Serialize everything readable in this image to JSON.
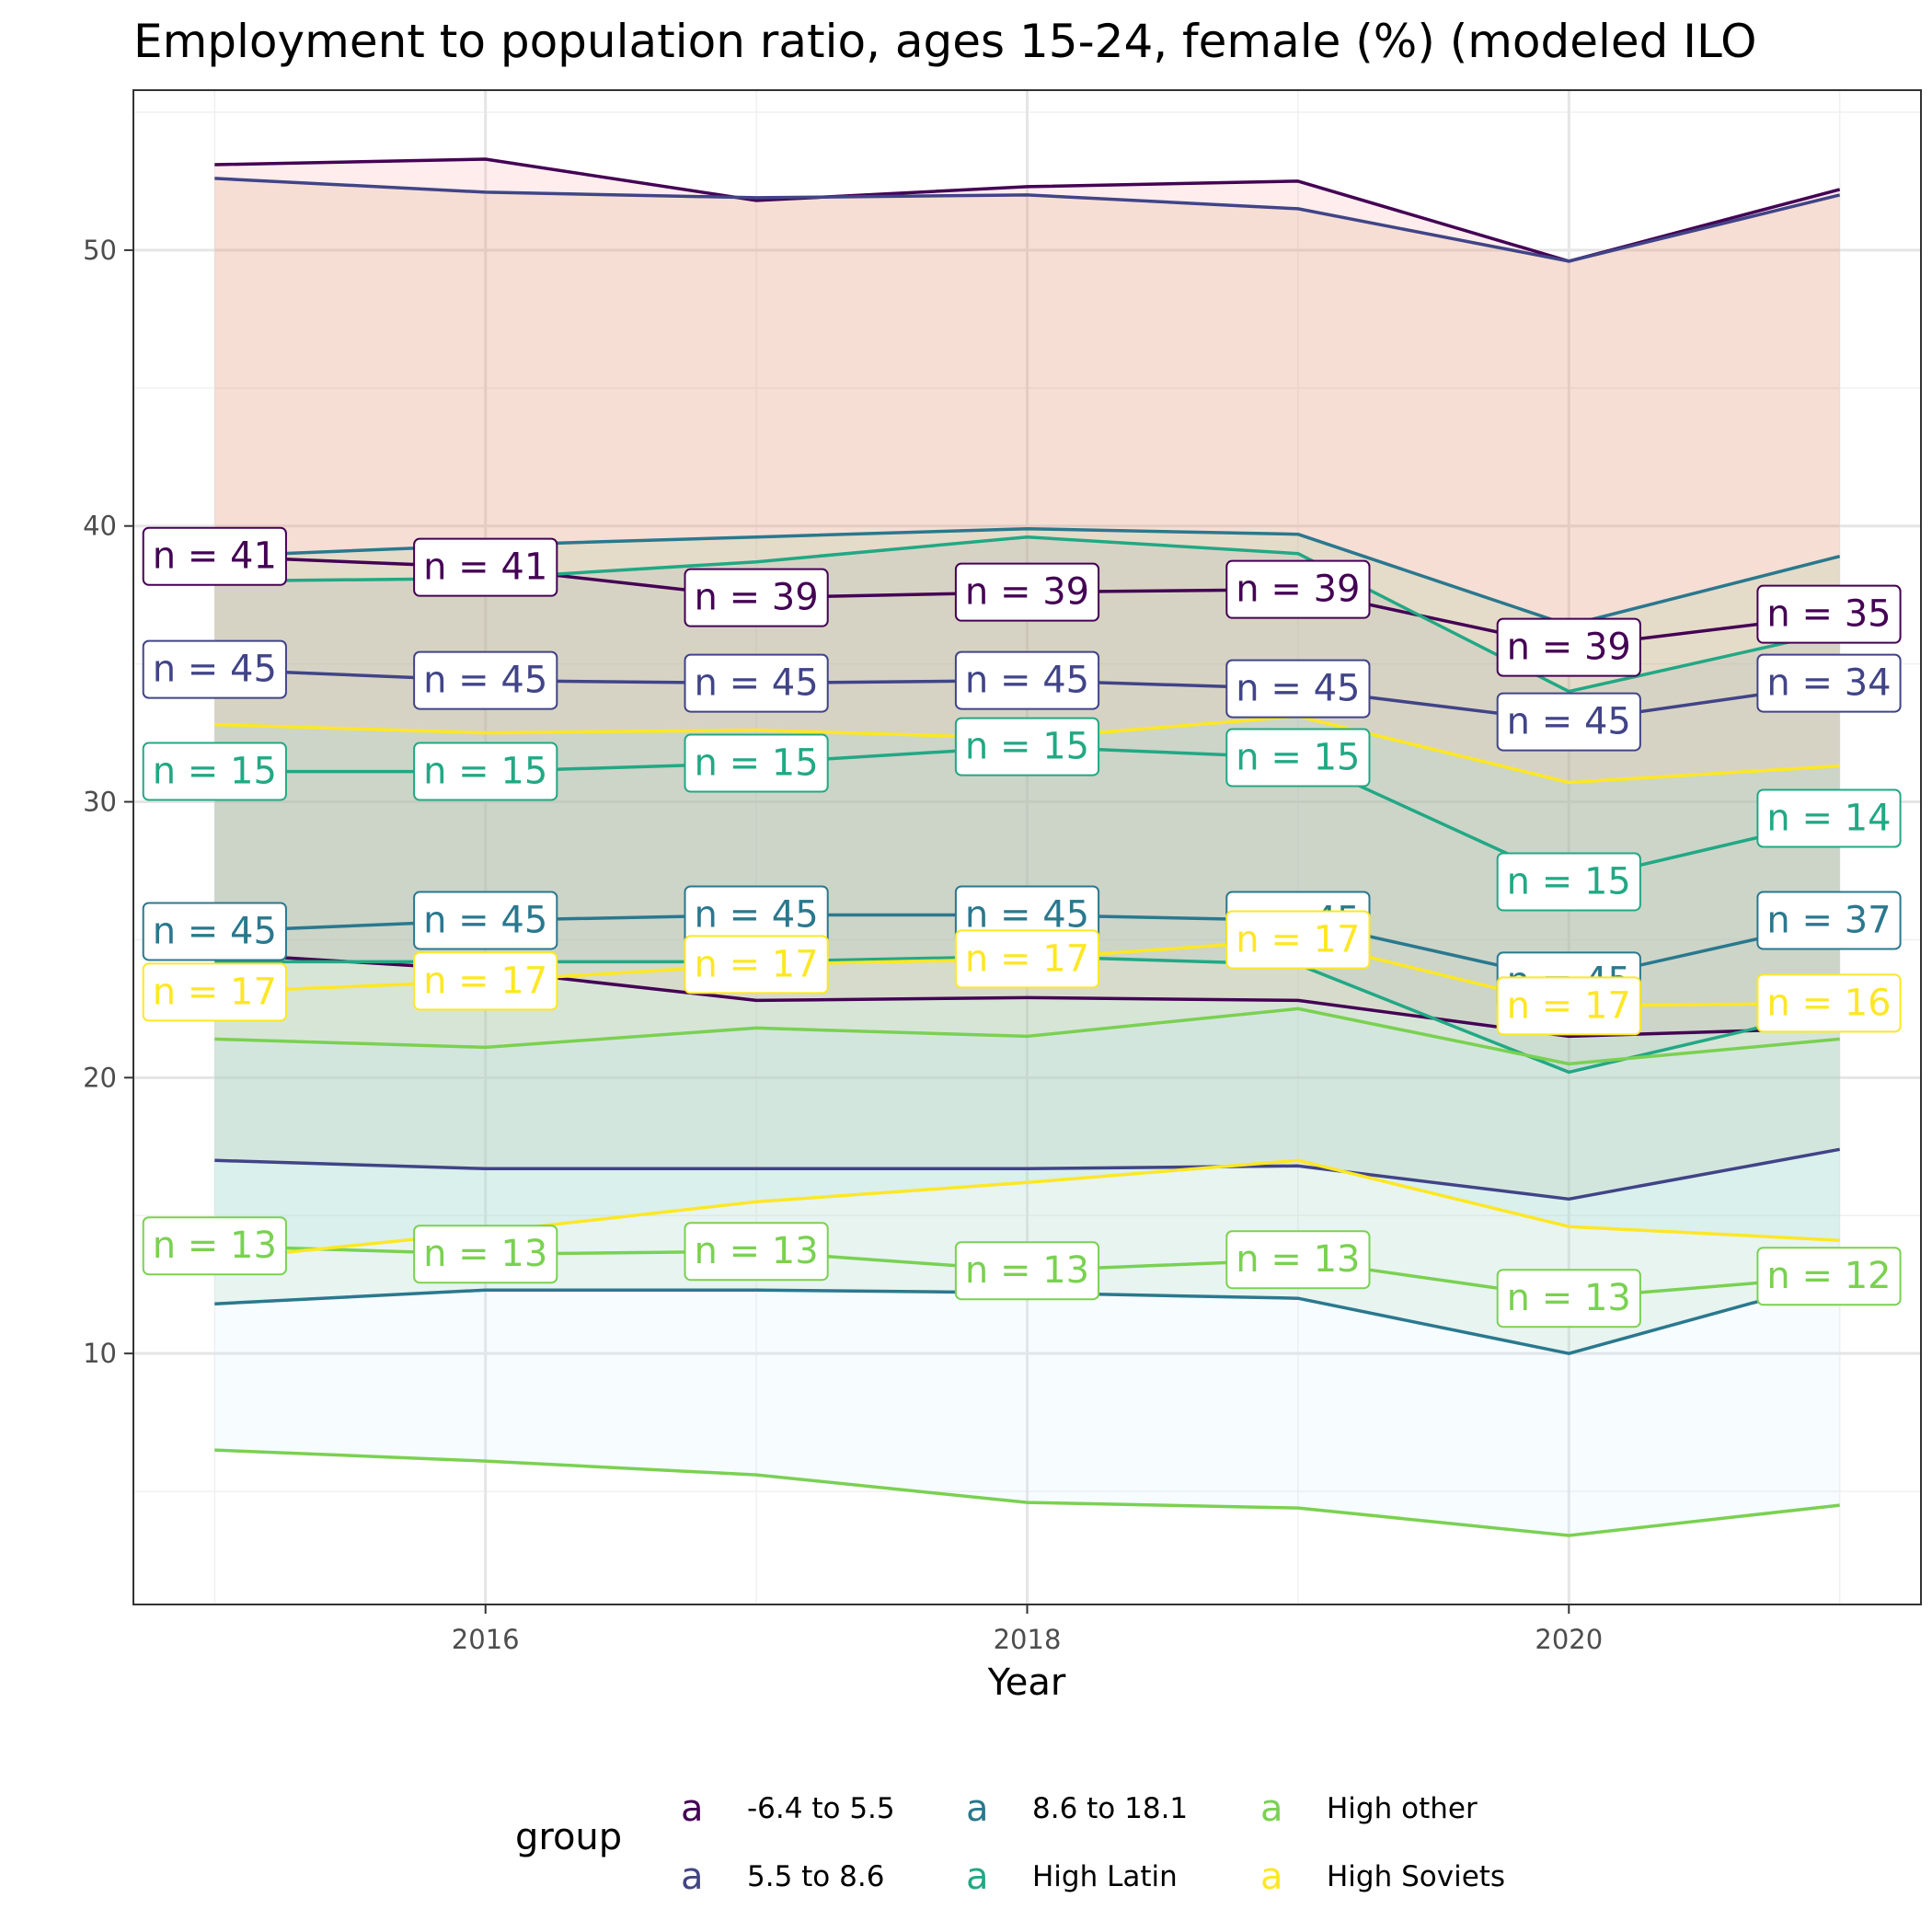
{
  "chart_data": {
    "type": "line",
    "title": "Employment to population ratio, ages 15-24, female (%) (modeled ILO",
    "xlabel": "Year",
    "ylabel": "",
    "x": [
      2015,
      2016,
      2017,
      2018,
      2019,
      2020,
      2021
    ],
    "xlim": [
      2014.7,
      2021.3
    ],
    "ylim": [
      0.9,
      55.8
    ],
    "xticks": [
      "2016",
      "2018",
      "2020"
    ],
    "yticks": [
      "10",
      "20",
      "30",
      "40",
      "50"
    ],
    "grid": true,
    "legend_position": "bottom",
    "legend_title": "group",
    "legend_key_glyph": "a",
    "label_prefix": "n = ",
    "series": [
      {
        "name": "-6.4 to 5.5",
        "color": "#440154",
        "fill": "#ff9999",
        "upper": [
          53.1,
          53.3,
          51.8,
          52.3,
          52.5,
          49.6,
          52.2
        ],
        "lower": [
          24.5,
          23.9,
          22.8,
          22.9,
          22.8,
          21.5,
          21.8
        ],
        "mid": [
          38.9,
          38.5,
          37.4,
          37.6,
          37.7,
          35.6,
          36.8
        ],
        "n": [
          "41",
          "41",
          "39",
          "39",
          "39",
          "39",
          "35"
        ]
      },
      {
        "name": "5.5 to 8.6",
        "color": "#414487",
        "fill": "#cc9966",
        "upper": [
          52.6,
          52.1,
          51.9,
          52.0,
          51.5,
          49.6,
          52.0
        ],
        "lower": [
          17.0,
          16.7,
          16.7,
          16.7,
          16.8,
          15.6,
          17.4
        ],
        "mid": [
          34.8,
          34.4,
          34.3,
          34.4,
          34.1,
          32.9,
          34.3
        ],
        "n": [
          "45",
          "45",
          "45",
          "45",
          "45",
          "45",
          "34"
        ]
      },
      {
        "name": "8.6 to 18.1",
        "color": "#2a788e",
        "fill": "#99cc99",
        "upper": [
          38.9,
          39.3,
          39.6,
          39.9,
          39.7,
          36.4,
          38.9
        ],
        "lower": [
          11.8,
          12.3,
          12.3,
          12.2,
          12.0,
          10.0,
          12.7
        ],
        "mid": [
          25.3,
          25.7,
          25.9,
          25.9,
          25.7,
          23.5,
          25.7
        ],
        "n": [
          "45",
          "45",
          "45",
          "45",
          "45",
          "45",
          "37"
        ]
      },
      {
        "name": "High Latin",
        "color": "#22a884",
        "fill": "#99b3b3",
        "upper": [
          38.0,
          38.1,
          38.7,
          39.6,
          39.0,
          34.0,
          36.2
        ],
        "lower": [
          24.2,
          24.2,
          24.2,
          24.4,
          24.1,
          20.2,
          22.5
        ],
        "mid": [
          31.1,
          31.1,
          31.4,
          32.0,
          31.6,
          27.1,
          29.4
        ],
        "n": [
          "15",
          "15",
          "15",
          "15",
          "15",
          "15",
          "14"
        ]
      },
      {
        "name": "High other",
        "color": "#7ad151",
        "fill": "#cceeff",
        "upper": [
          21.4,
          21.1,
          21.8,
          21.5,
          22.5,
          20.5,
          21.4
        ],
        "lower": [
          6.5,
          6.1,
          5.6,
          4.6,
          4.4,
          3.4,
          4.5
        ],
        "mid": [
          13.9,
          13.6,
          13.7,
          13.0,
          13.4,
          12.0,
          12.8
        ],
        "n": [
          "13",
          "13",
          "13",
          "13",
          "13",
          "13",
          "12"
        ]
      },
      {
        "name": "High Soviets",
        "color": "#fde725",
        "fill": "#99dddd",
        "upper": [
          32.8,
          32.5,
          32.6,
          32.3,
          33.1,
          30.7,
          31.3
        ],
        "lower": [
          13.4,
          14.4,
          15.5,
          16.2,
          17.0,
          14.6,
          14.1
        ],
        "mid": [
          23.1,
          23.5,
          24.1,
          24.3,
          25.0,
          22.6,
          22.7
        ],
        "n": [
          "17",
          "17",
          "17",
          "17",
          "17",
          "17",
          "16"
        ]
      }
    ]
  }
}
